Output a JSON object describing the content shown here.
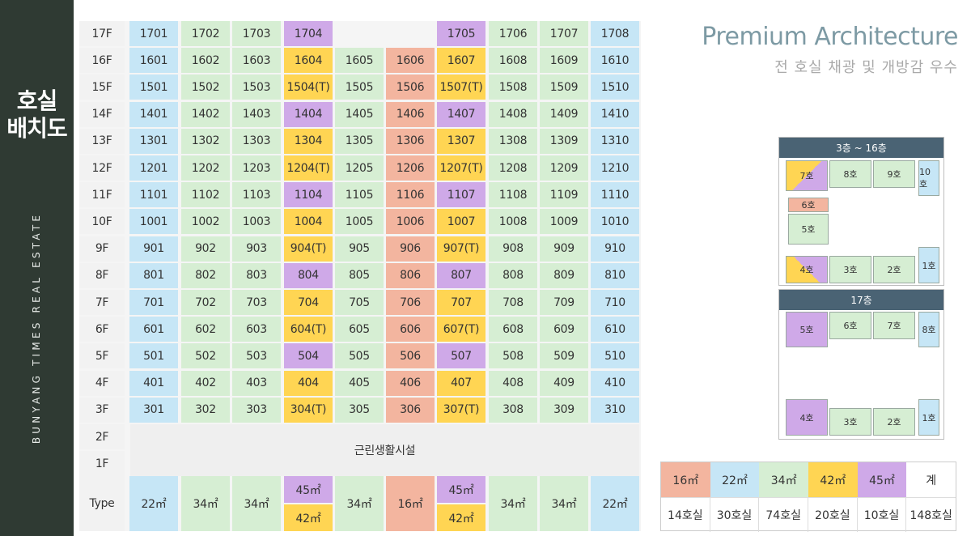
{
  "sidebar": {
    "title_line1": "호실",
    "title_line2": "배치도",
    "brand": "BUNYANG TIMES REAL ESTATE"
  },
  "header": {
    "title": "Premium Architecture",
    "subtitle": "전 호실 채광 및 개방감 우수"
  },
  "colors": {
    "blue": "#c6e6f6",
    "green": "#d6eed3",
    "yellow": "#ffd553",
    "purple": "#cfa9e8",
    "salmon": "#f3b59f",
    "sidebar": "#2f3a33",
    "plan_header": "#4a6374"
  },
  "column_colors": [
    "blue",
    "green",
    "green",
    "mixed",
    "green",
    "salmon",
    "mixed",
    "green",
    "green",
    "blue"
  ],
  "floors": [
    {
      "label": "17F",
      "units": [
        "1701",
        "1702",
        "1703",
        "1704",
        "",
        "",
        "1705",
        "1706",
        "1707",
        "1708"
      ],
      "c4": "purple",
      "c7": "purple"
    },
    {
      "label": "16F",
      "units": [
        "1601",
        "1602",
        "1603",
        "1604",
        "1605",
        "1606",
        "1607",
        "1608",
        "1609",
        "1610"
      ],
      "c4": "yellow",
      "c7": "yellow"
    },
    {
      "label": "15F",
      "units": [
        "1501",
        "1502",
        "1503",
        "1504(T)",
        "1505",
        "1506",
        "1507(T)",
        "1508",
        "1509",
        "1510"
      ],
      "c4": "yellow",
      "c7": "yellow"
    },
    {
      "label": "14F",
      "units": [
        "1401",
        "1402",
        "1403",
        "1404",
        "1405",
        "1406",
        "1407",
        "1408",
        "1409",
        "1410"
      ],
      "c4": "purple",
      "c7": "purple"
    },
    {
      "label": "13F",
      "units": [
        "1301",
        "1302",
        "1303",
        "1304",
        "1305",
        "1306",
        "1307",
        "1308",
        "1309",
        "1310"
      ],
      "c4": "yellow",
      "c7": "yellow"
    },
    {
      "label": "12F",
      "units": [
        "1201",
        "1202",
        "1203",
        "1204(T)",
        "1205",
        "1206",
        "1207(T)",
        "1208",
        "1209",
        "1210"
      ],
      "c4": "yellow",
      "c7": "yellow"
    },
    {
      "label": "11F",
      "units": [
        "1101",
        "1102",
        "1103",
        "1104",
        "1105",
        "1106",
        "1107",
        "1108",
        "1109",
        "1110"
      ],
      "c4": "purple",
      "c7": "purple"
    },
    {
      "label": "10F",
      "units": [
        "1001",
        "1002",
        "1003",
        "1004",
        "1005",
        "1006",
        "1007",
        "1008",
        "1009",
        "1010"
      ],
      "c4": "yellow",
      "c7": "yellow"
    },
    {
      "label": "9F",
      "units": [
        "901",
        "902",
        "903",
        "904(T)",
        "905",
        "906",
        "907(T)",
        "908",
        "909",
        "910"
      ],
      "c4": "yellow",
      "c7": "yellow"
    },
    {
      "label": "8F",
      "units": [
        "801",
        "802",
        "803",
        "804",
        "805",
        "806",
        "807",
        "808",
        "809",
        "810"
      ],
      "c4": "purple",
      "c7": "purple"
    },
    {
      "label": "7F",
      "units": [
        "701",
        "702",
        "703",
        "704",
        "705",
        "706",
        "707",
        "708",
        "709",
        "710"
      ],
      "c4": "yellow",
      "c7": "yellow"
    },
    {
      "label": "6F",
      "units": [
        "601",
        "602",
        "603",
        "604(T)",
        "605",
        "606",
        "607(T)",
        "608",
        "609",
        "610"
      ],
      "c4": "yellow",
      "c7": "yellow"
    },
    {
      "label": "5F",
      "units": [
        "501",
        "502",
        "503",
        "504",
        "505",
        "506",
        "507",
        "508",
        "509",
        "510"
      ],
      "c4": "purple",
      "c7": "purple"
    },
    {
      "label": "4F",
      "units": [
        "401",
        "402",
        "403",
        "404",
        "405",
        "406",
        "407",
        "408",
        "409",
        "410"
      ],
      "c4": "yellow",
      "c7": "yellow"
    },
    {
      "label": "3F",
      "units": [
        "301",
        "302",
        "303",
        "304(T)",
        "305",
        "306",
        "307(T)",
        "308",
        "309",
        "310"
      ],
      "c4": "yellow",
      "c7": "yellow"
    }
  ],
  "lower_floors": [
    "2F",
    "1F"
  ],
  "commercial_label": "근린생활시설",
  "type_row": {
    "label": "Type",
    "values": [
      "22㎡",
      "34㎡",
      "34㎡",
      "45㎡|42㎡",
      "34㎡",
      "16㎡",
      "45㎡|42㎡",
      "34㎡",
      "34㎡",
      "22㎡"
    ]
  },
  "plan_3_16": {
    "title": "3층 ~ 16층",
    "rooms": [
      "7호",
      "8호",
      "9호",
      "10호",
      "6호",
      "5호",
      "4호",
      "3호",
      "2호",
      "1호"
    ]
  },
  "plan_17": {
    "title": "17층",
    "rooms": [
      "5호",
      "6호",
      "7호",
      "8호",
      "4호",
      "3호",
      "2호",
      "1호"
    ]
  },
  "legend": {
    "headers": [
      "16㎡",
      "22㎡",
      "34㎡",
      "42㎡",
      "45㎡",
      "계"
    ],
    "header_colors": [
      "salmon",
      "blue",
      "green",
      "yellow",
      "purple",
      "white"
    ],
    "counts": [
      "14호실",
      "30호실",
      "74호실",
      "20호실",
      "10호실",
      "148호실"
    ]
  }
}
